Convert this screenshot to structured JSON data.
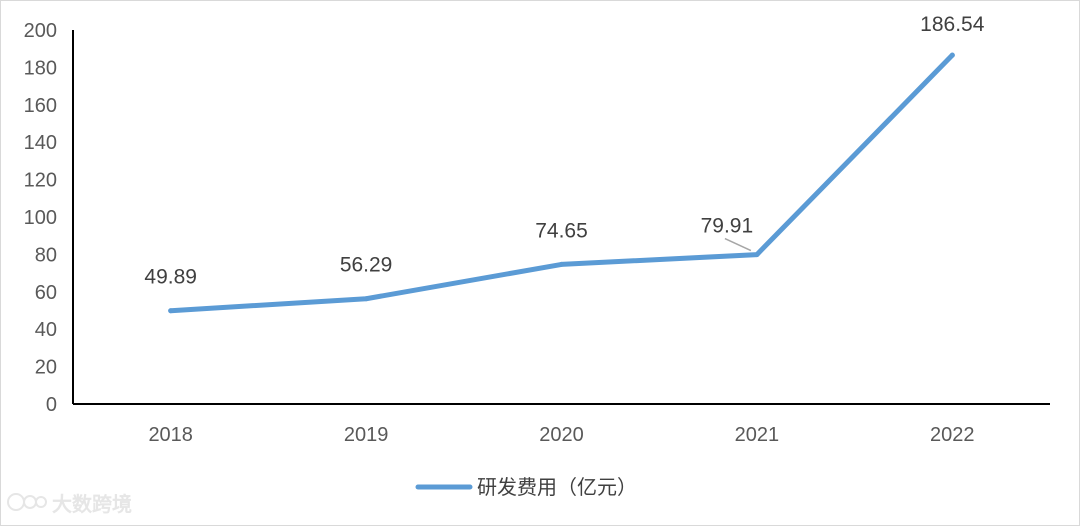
{
  "chart_data": {
    "type": "line",
    "categories": [
      "2018",
      "2019",
      "2020",
      "2021",
      "2022"
    ],
    "series": [
      {
        "name": "研发费用（亿元）",
        "values": [
          49.89,
          56.29,
          74.65,
          79.91,
          186.54
        ],
        "color": "#5b9bd5"
      }
    ],
    "data_labels": [
      "49.89",
      "56.29",
      "74.65",
      "79.91",
      "186.54"
    ],
    "yticks": [
      "0",
      "20",
      "40",
      "60",
      "80",
      "100",
      "120",
      "140",
      "160",
      "180",
      "200"
    ],
    "ylim": [
      0,
      200
    ],
    "grid": false,
    "legend_position": "bottom"
  },
  "watermark": {
    "text": "大数跨境"
  }
}
